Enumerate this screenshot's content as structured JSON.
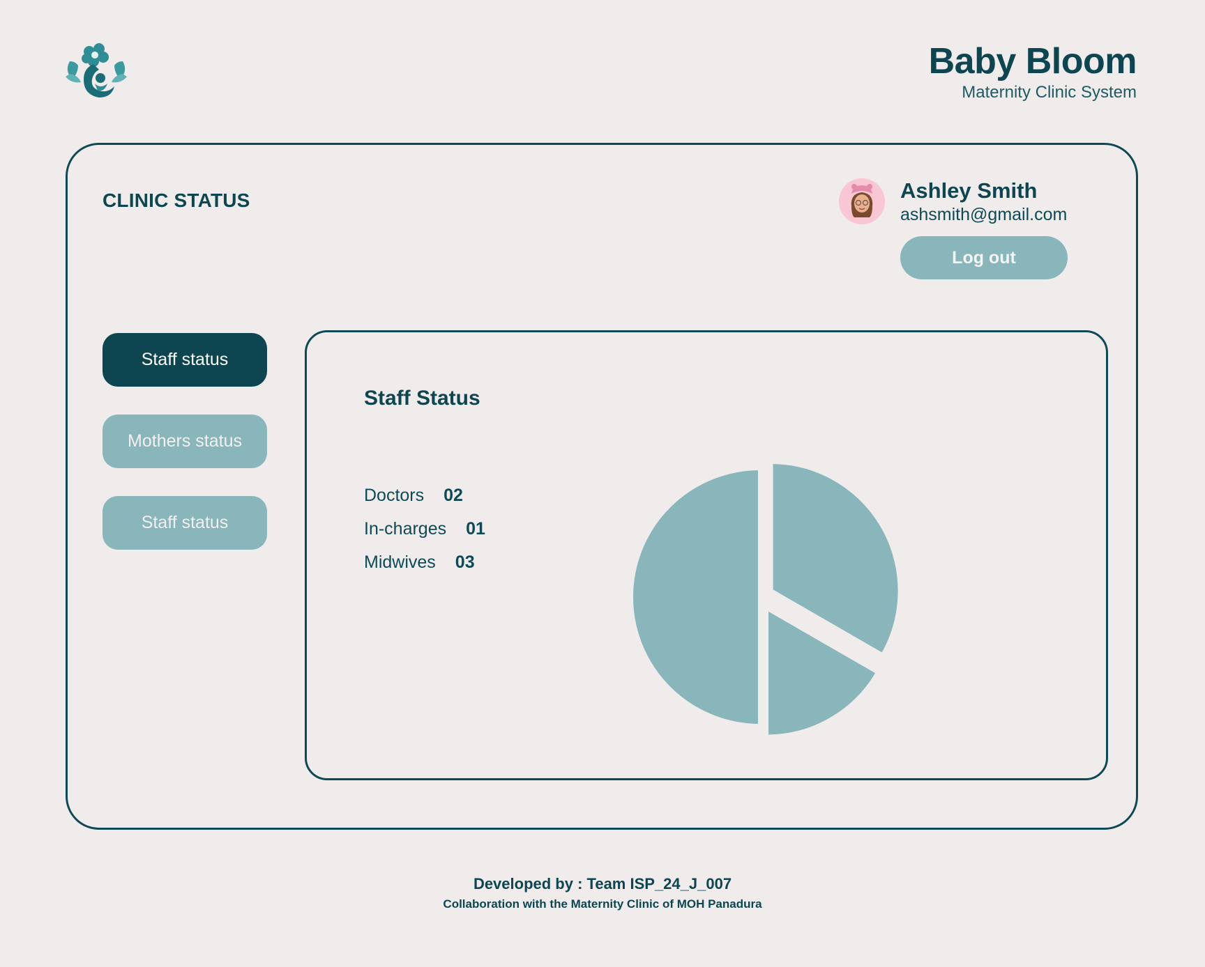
{
  "brand": {
    "title": "Baby Bloom",
    "subtitle": "Maternity Clinic System",
    "logo_icon": "flower-mother-child-logo"
  },
  "header": {
    "title": "CLINIC STATUS"
  },
  "user": {
    "name": "Ashley Smith",
    "email": "ashsmith@gmail.com",
    "avatar_icon": "memoji-avatar",
    "logout_label": "Log out"
  },
  "sidebar": {
    "items": [
      {
        "label": "Staff status",
        "active": true
      },
      {
        "label": "Mothers status",
        "active": false
      },
      {
        "label": "Staff status",
        "active": false
      }
    ]
  },
  "panel": {
    "title": "Staff Status",
    "stats": [
      {
        "label": "Doctors",
        "value": "02"
      },
      {
        "label": "In-charges",
        "value": "01"
      },
      {
        "label": "Midwives",
        "value": "03"
      }
    ]
  },
  "chart_data": {
    "type": "pie",
    "title": "",
    "categories": [
      "Midwives",
      "Doctors",
      "In-charges"
    ],
    "values": [
      3,
      2,
      1
    ],
    "color": "#88b6ba"
  },
  "footer": {
    "line1": "Developed by : Team ISP_24_J_007",
    "line2": "Collaboration with the Maternity Clinic of MOH Panadura"
  },
  "colors": {
    "background": "#f0ecec",
    "primary": "#0d4650",
    "accent": "#88b6ba"
  }
}
